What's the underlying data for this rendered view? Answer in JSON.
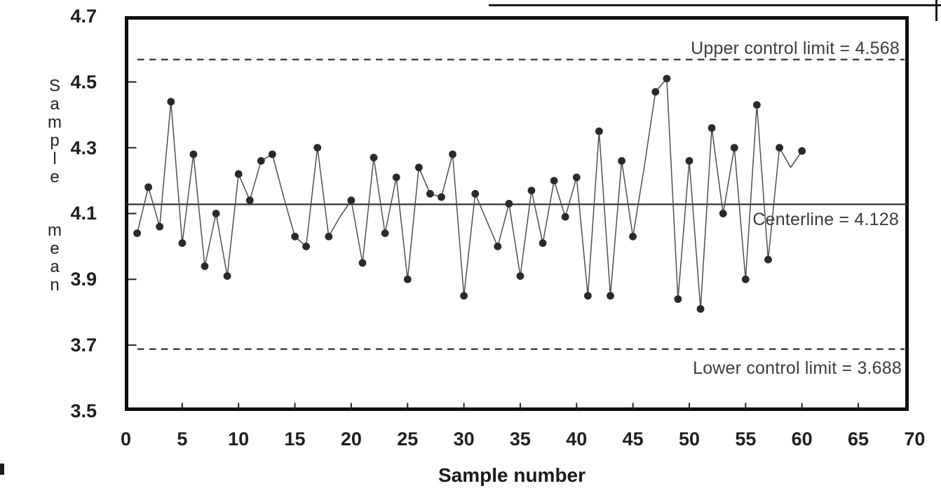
{
  "page": {
    "background": "#ffffff"
  },
  "chart_data": {
    "type": "line",
    "chart_kind": "x-bar control chart",
    "title": "",
    "xlabel": "Sample number",
    "ylabel": "Sample mean",
    "xlim": [
      0,
      70
    ],
    "ylim": [
      3.5,
      4.7
    ],
    "x_ticks": [
      0,
      5,
      10,
      15,
      20,
      25,
      30,
      35,
      40,
      45,
      50,
      55,
      60,
      65,
      70
    ],
    "y_ticks": [
      4.7,
      4.5,
      4.3,
      4.1,
      3.9,
      3.7,
      3.5
    ],
    "grid": false,
    "legend": false,
    "upper_control_limit": {
      "value": 4.568,
      "label": "Upper control limit = 4.568"
    },
    "centerline": {
      "value": 4.128,
      "label": "Centerline = 4.128"
    },
    "lower_control_limit": {
      "value": 3.688,
      "label": "Lower control limit = 3.688"
    },
    "samples": {
      "x_start": 1,
      "values": [
        4.04,
        4.18,
        4.06,
        4.44,
        4.01,
        4.28,
        3.94,
        4.1,
        3.91,
        4.22,
        4.14,
        4.26,
        4.28,
        4.15,
        4.03,
        4.0,
        4.3,
        4.03,
        4.09,
        4.14,
        3.95,
        4.27,
        4.04,
        4.21,
        3.9,
        4.24,
        4.16,
        4.15,
        4.28,
        3.85,
        4.16,
        4.08,
        4.0,
        4.13,
        3.91,
        4.17,
        4.01,
        4.2,
        4.09,
        4.21,
        3.85,
        4.35,
        3.85,
        4.26,
        4.03,
        4.24,
        4.47,
        4.51,
        3.84,
        4.26,
        3.81,
        4.36,
        4.1,
        4.3,
        3.9,
        4.43,
        3.96,
        4.3,
        4.24,
        4.29
      ]
    },
    "faded_markers": [
      14,
      19,
      32,
      46,
      59
    ],
    "colors": {
      "point": "#2a2a2a",
      "line": "#4f4f4f",
      "frame": "#0f0f0f",
      "limit_lines": "#3d3d3d",
      "centerline": "#333333",
      "tick_text": "#1f1f1f",
      "annotation_text": "#3c3c3c"
    }
  }
}
